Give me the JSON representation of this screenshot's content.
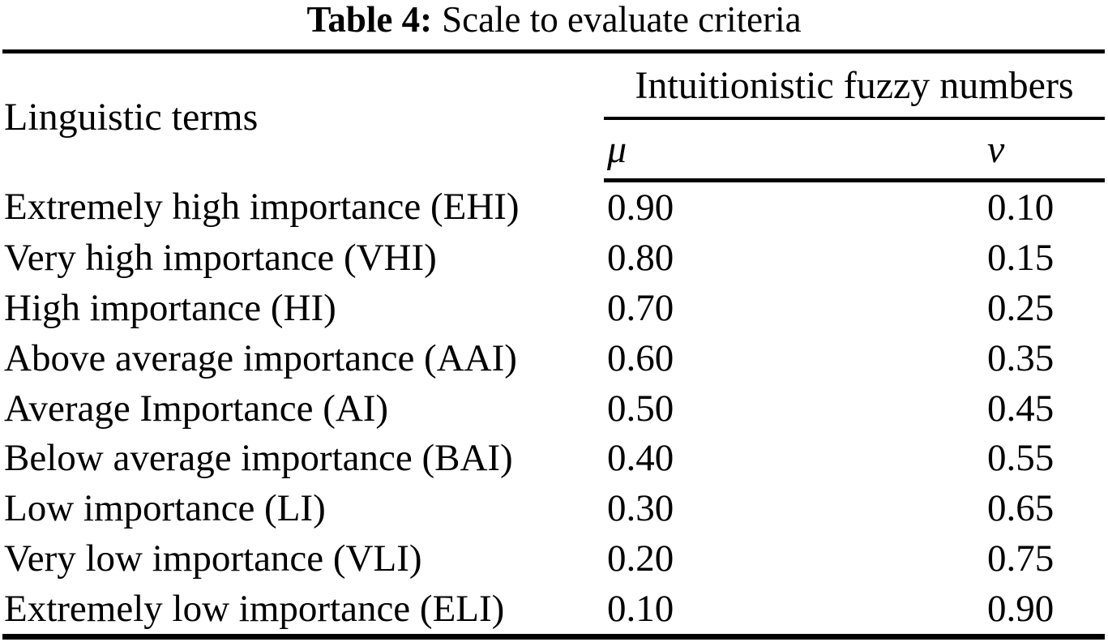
{
  "caption": {
    "label": "Table 4:",
    "title": "Scale to evaluate criteria"
  },
  "table": {
    "headers": {
      "linguistic_terms": "Linguistic terms",
      "group": "Intuitionistic fuzzy numbers",
      "mu": "μ",
      "nu": "ν"
    },
    "rows": [
      {
        "term": "Extremely high importance (EHI)",
        "mu": "0.90",
        "nu": "0.10"
      },
      {
        "term": "Very high importance (VHI)",
        "mu": "0.80",
        "nu": "0.15"
      },
      {
        "term": "High importance (HI)",
        "mu": "0.70",
        "nu": "0.25"
      },
      {
        "term": "Above average importance (AAI)",
        "mu": "0.60",
        "nu": "0.35"
      },
      {
        "term": "Average Importance (AI)",
        "mu": "0.50",
        "nu": "0.45"
      },
      {
        "term": "Below average importance (BAI)",
        "mu": "0.40",
        "nu": "0.55"
      },
      {
        "term": "Low importance (LI)",
        "mu": "0.30",
        "nu": "0.65"
      },
      {
        "term": "Very low importance (VLI)",
        "mu": "0.20",
        "nu": "0.75"
      },
      {
        "term": "Extremely low importance (ELI)",
        "mu": "0.10",
        "nu": "0.90"
      }
    ],
    "colors": {
      "text": "#000000",
      "background": "#ffffff",
      "rule": "#000000"
    }
  }
}
